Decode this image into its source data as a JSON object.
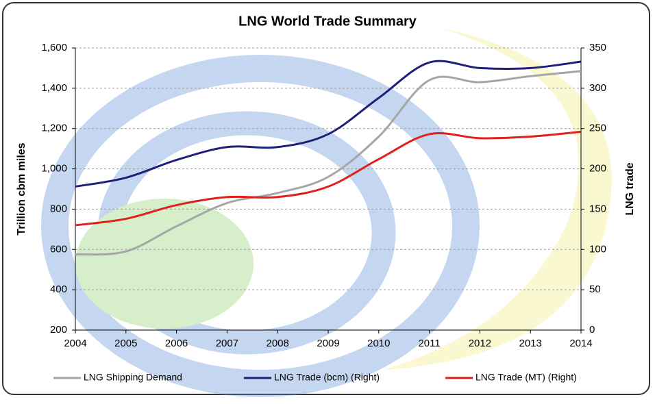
{
  "chart_data": {
    "type": "line",
    "title": "LNG World Trade Summary",
    "y_label": "Trillion cbm miles",
    "y2_label": "LNG trade",
    "x": [
      2004,
      2005,
      2006,
      2007,
      2008,
      2009,
      2010,
      2011,
      2012,
      2013,
      2014
    ],
    "xlim": [
      2004,
      2014
    ],
    "xticks": [
      2004,
      2005,
      2006,
      2007,
      2008,
      2009,
      2010,
      2011,
      2012,
      2013,
      2014
    ],
    "ylim": [
      200,
      1600
    ],
    "yticks": [
      200,
      400,
      600,
      800,
      {
        "value": 1000,
        "label": "1,000"
      },
      {
        "value": 1200,
        "label": "1,200"
      },
      {
        "value": 1400,
        "label": "1,400"
      },
      {
        "value": 1600,
        "label": "1,600"
      }
    ],
    "y2lim": [
      0,
      350
    ],
    "y2ticks": [
      0,
      50,
      100,
      150,
      200,
      250,
      300,
      350
    ],
    "grid": true,
    "legend": "bottom",
    "series": [
      {
        "name": "LNG Shipping Demand",
        "color": "#a6a6a6",
        "values": [
          575,
          590,
          715,
          830,
          880,
          960,
          1160,
          1440,
          1430,
          1460,
          1485
        ]
      },
      {
        "name": "LNG Trade (bcm) (Right)",
        "color": "#1f1f7a",
        "axis": "y2",
        "values": [
          178,
          189,
          211,
          227,
          227,
          243,
          288,
          332,
          325,
          325,
          333
        ]
      },
      {
        "name": "LNG Trade (MT) (Right)",
        "color": "#e0201b",
        "axis": "y2",
        "values": [
          130,
          138,
          155,
          165,
          165,
          178,
          212,
          243,
          238,
          240,
          246
        ]
      }
    ]
  }
}
